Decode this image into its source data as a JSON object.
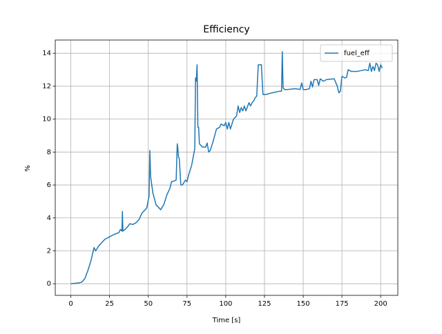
{
  "chart_data": {
    "type": "line",
    "title": "Efficiency",
    "xlabel": "Time [s]",
    "ylabel": "%",
    "x": [
      0,
      5,
      7,
      9,
      11,
      13,
      15,
      16,
      18,
      20,
      22,
      25,
      28,
      31,
      32,
      33,
      33.3,
      33.6,
      35,
      37,
      38,
      40,
      42,
      44,
      46,
      48,
      49,
      50,
      50.5,
      51,
      51.5,
      53,
      55,
      57,
      58,
      60,
      62,
      64,
      65,
      67,
      68,
      68.7,
      69,
      69.5,
      70,
      71,
      72,
      74,
      75,
      76,
      78,
      80,
      80.5,
      81,
      81.5,
      82,
      82.5,
      83,
      85,
      87,
      88,
      89,
      90,
      92,
      94,
      96,
      97,
      99,
      100,
      101,
      102,
      103,
      105,
      107,
      108,
      109,
      110,
      111,
      112,
      113,
      115,
      116,
      117,
      118,
      119,
      120,
      121,
      123,
      124,
      126,
      130,
      135,
      136,
      136.5,
      137,
      138,
      140,
      145,
      148,
      149,
      150,
      152,
      154,
      155,
      156,
      157,
      159,
      160,
      161,
      163,
      165,
      170,
      172,
      173,
      174,
      175,
      177,
      178,
      179,
      181,
      185,
      190,
      192,
      193,
      194,
      195,
      196,
      197,
      198,
      199,
      200,
      201
    ],
    "series": [
      {
        "name": "fuel_eff",
        "color": "#1f77b4",
        "values": [
          0,
          0.05,
          0.1,
          0.3,
          0.8,
          1.4,
          2.2,
          2.0,
          2.3,
          2.5,
          2.7,
          2.85,
          3.0,
          3.1,
          3.3,
          3.2,
          4.4,
          3.2,
          3.3,
          3.5,
          3.65,
          3.6,
          3.7,
          3.9,
          4.3,
          4.5,
          4.6,
          5.1,
          5.3,
          8.1,
          6.5,
          5.5,
          4.8,
          4.6,
          4.5,
          4.8,
          5.4,
          5.8,
          6.2,
          6.25,
          6.3,
          8.5,
          8.3,
          7.7,
          7.6,
          6.0,
          6.0,
          6.3,
          6.2,
          6.6,
          7.2,
          8.2,
          12.5,
          12.3,
          13.3,
          9.5,
          9.5,
          8.5,
          8.3,
          8.3,
          8.55,
          8.0,
          8.1,
          8.7,
          9.4,
          9.5,
          9.7,
          9.6,
          9.8,
          9.4,
          9.8,
          9.4,
          10.0,
          10.2,
          10.8,
          10.4,
          10.7,
          10.5,
          10.8,
          10.5,
          11.0,
          10.8,
          11.0,
          11.1,
          11.3,
          11.4,
          13.3,
          13.3,
          11.5,
          11.5,
          11.6,
          11.7,
          11.7,
          14.1,
          11.9,
          11.8,
          11.8,
          11.85,
          11.8,
          12.2,
          11.8,
          11.8,
          11.85,
          12.3,
          11.95,
          12.4,
          12.4,
          12.05,
          12.45,
          12.3,
          12.4,
          12.45,
          12.0,
          11.6,
          11.7,
          12.6,
          12.5,
          12.55,
          13.0,
          12.9,
          12.9,
          13.0,
          12.95,
          13.4,
          12.9,
          13.2,
          12.95,
          13.4,
          13.3,
          12.9,
          13.3,
          13.1
        ]
      }
    ],
    "xlim": [
      -10.05,
      211.05
    ],
    "xticks": [
      0,
      25,
      50,
      75,
      100,
      125,
      150,
      175,
      200
    ],
    "ylim": [
      -0.705,
      14.805
    ],
    "yticks": [
      0,
      2,
      4,
      6,
      8,
      10,
      12,
      14
    ],
    "grid": true,
    "legend": "upper right"
  }
}
